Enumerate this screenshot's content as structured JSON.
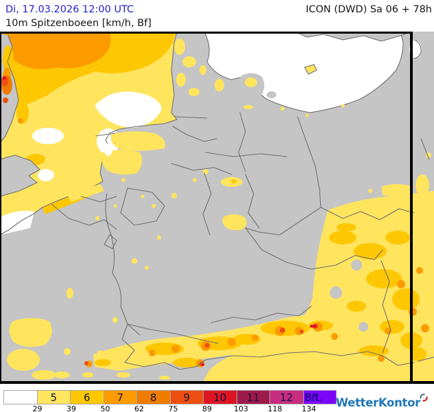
{
  "header": {
    "datetime": "Di, 17.03.2026 12:00 UTC",
    "parameter": "10m Spitzenboeen [km/h, Bf]",
    "model_run": "ICON (DWD) Sa 06 + 78h"
  },
  "map": {
    "colors": {
      "sea_calm": "#ffffff",
      "land": "#c5c5c5",
      "border": "#6f6f6f",
      "frame": "#000000",
      "bf5": "#ffe45e",
      "bf6": "#fdc703",
      "bf7": "#fb9b00",
      "bf8": "#ee7c00",
      "bf9": "#ee4f11",
      "bf10": "#dc1522",
      "bf11": "#9d1a4a",
      "bf12": "#c62c80",
      "bft_plus": "#7c06f8"
    }
  },
  "legend": {
    "boxes": [
      {
        "label": "",
        "color_key": "sea_calm"
      },
      {
        "label": "5",
        "color_key": "bf5"
      },
      {
        "label": "6",
        "color_key": "bf6"
      },
      {
        "label": "7",
        "color_key": "bf7"
      },
      {
        "label": "8",
        "color_key": "bf8"
      },
      {
        "label": "9",
        "color_key": "bf9"
      },
      {
        "label": "10",
        "color_key": "bf10"
      },
      {
        "label": "11",
        "color_key": "bf11"
      },
      {
        "label": "12",
        "color_key": "bf12"
      },
      {
        "label": "Bft.",
        "color_key": "bft_plus"
      }
    ],
    "kmh_ticks": [
      "29",
      "39",
      "50",
      "62",
      "75",
      "89",
      "103",
      "118",
      "134"
    ]
  },
  "branding": {
    "logo": "WetterKontor"
  }
}
